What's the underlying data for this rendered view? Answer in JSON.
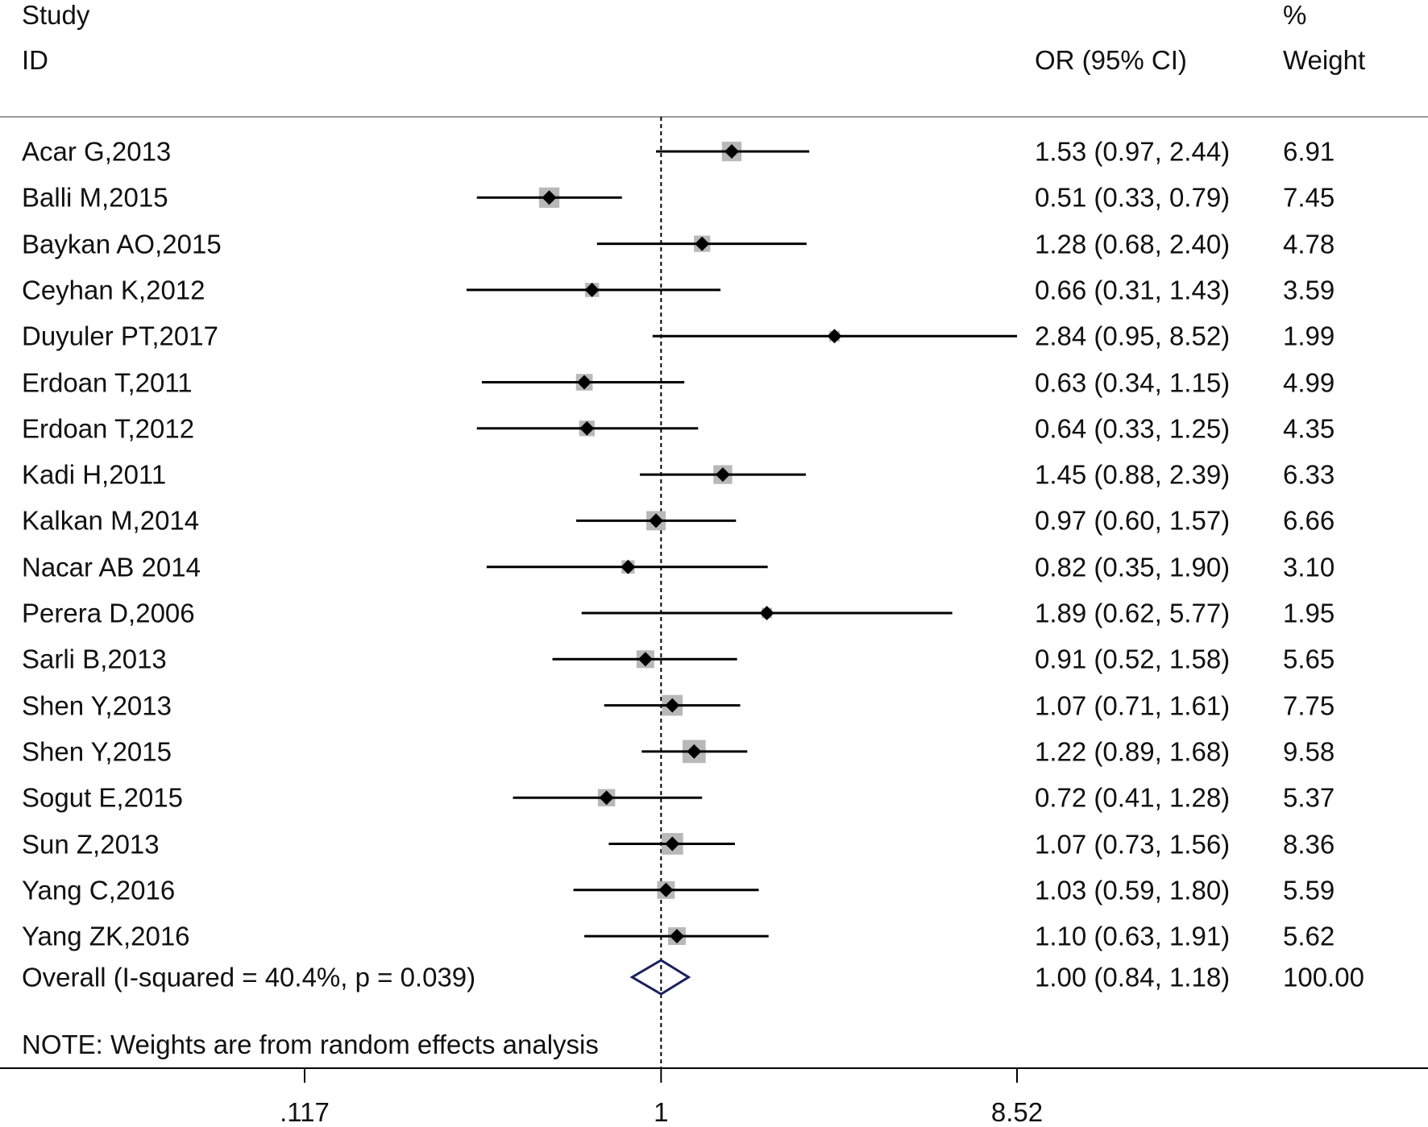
{
  "headers": {
    "study_line1": "Study",
    "study_line2": "ID",
    "or_label": "OR (95% CI)",
    "weight_line1": "%",
    "weight_line2": "Weight"
  },
  "note": "NOTE: Weights are from random effects analysis",
  "colors": {
    "text": "#111111",
    "line": "#000000",
    "box": "#b8b8b8",
    "point": "#000000",
    "diamond": "#1a1f5c",
    "rule": "#999999"
  },
  "chart_data": {
    "type": "forest",
    "title": "",
    "xscale": "log",
    "xlim": [
      0.117,
      8.52
    ],
    "null_line": 1,
    "ticks": [
      {
        "value": 0.117,
        "label": ".117"
      },
      {
        "value": 1,
        "label": "1"
      },
      {
        "value": 8.52,
        "label": "8.52"
      }
    ],
    "studies": [
      {
        "name": "Acar G,2013",
        "or": 1.53,
        "lo": 0.97,
        "hi": 2.44,
        "ci_text": "1.53 (0.97, 2.44)",
        "weight": "6.91"
      },
      {
        "name": "Balli M,2015",
        "or": 0.51,
        "lo": 0.33,
        "hi": 0.79,
        "ci_text": "0.51 (0.33, 0.79)",
        "weight": "7.45"
      },
      {
        "name": "Baykan AO,2015",
        "or": 1.28,
        "lo": 0.68,
        "hi": 2.4,
        "ci_text": "1.28 (0.68, 2.40)",
        "weight": "4.78"
      },
      {
        "name": "Ceyhan K,2012",
        "or": 0.66,
        "lo": 0.31,
        "hi": 1.43,
        "ci_text": "0.66 (0.31, 1.43)",
        "weight": "3.59"
      },
      {
        "name": "Duyuler PT,2017",
        "or": 2.84,
        "lo": 0.95,
        "hi": 8.52,
        "ci_text": "2.84 (0.95, 8.52)",
        "weight": "1.99"
      },
      {
        "name": "Erdoan T,2011",
        "or": 0.63,
        "lo": 0.34,
        "hi": 1.15,
        "ci_text": "0.63 (0.34, 1.15)",
        "weight": "4.99"
      },
      {
        "name": "Erdoan T,2012",
        "or": 0.64,
        "lo": 0.33,
        "hi": 1.25,
        "ci_text": "0.64 (0.33, 1.25)",
        "weight": "4.35"
      },
      {
        "name": "Kadi H,2011",
        "or": 1.45,
        "lo": 0.88,
        "hi": 2.39,
        "ci_text": "1.45 (0.88, 2.39)",
        "weight": "6.33"
      },
      {
        "name": "Kalkan M,2014",
        "or": 0.97,
        "lo": 0.6,
        "hi": 1.57,
        "ci_text": "0.97 (0.60, 1.57)",
        "weight": "6.66"
      },
      {
        "name": "Nacar AB 2014",
        "or": 0.82,
        "lo": 0.35,
        "hi": 1.9,
        "ci_text": "0.82 (0.35, 1.90)",
        "weight": "3.10"
      },
      {
        "name": "Perera D,2006",
        "or": 1.89,
        "lo": 0.62,
        "hi": 5.77,
        "ci_text": "1.89 (0.62, 5.77)",
        "weight": "1.95"
      },
      {
        "name": "Sarli B,2013",
        "or": 0.91,
        "lo": 0.52,
        "hi": 1.58,
        "ci_text": "0.91 (0.52, 1.58)",
        "weight": "5.65"
      },
      {
        "name": "Shen Y,2013",
        "or": 1.07,
        "lo": 0.71,
        "hi": 1.61,
        "ci_text": "1.07 (0.71, 1.61)",
        "weight": "7.75"
      },
      {
        "name": "Shen Y,2015",
        "or": 1.22,
        "lo": 0.89,
        "hi": 1.68,
        "ci_text": "1.22 (0.89, 1.68)",
        "weight": "9.58"
      },
      {
        "name": "Sogut E,2015",
        "or": 0.72,
        "lo": 0.41,
        "hi": 1.28,
        "ci_text": "0.72 (0.41, 1.28)",
        "weight": "5.37"
      },
      {
        "name": "Sun Z,2013",
        "or": 1.07,
        "lo": 0.73,
        "hi": 1.56,
        "ci_text": "1.07 (0.73, 1.56)",
        "weight": "8.36"
      },
      {
        "name": "Yang C,2016",
        "or": 1.03,
        "lo": 0.59,
        "hi": 1.8,
        "ci_text": "1.03 (0.59, 1.80)",
        "weight": "5.59"
      },
      {
        "name": "Yang ZK,2016",
        "or": 1.1,
        "lo": 0.63,
        "hi": 1.91,
        "ci_text": "1.10 (0.63, 1.91)",
        "weight": "5.62"
      }
    ],
    "overall": {
      "label": "Overall  (I-squared = 40.4%, p = 0.039)",
      "or": 1.0,
      "lo": 0.84,
      "hi": 1.18,
      "ci_text": "1.00 (0.84, 1.18)",
      "weight": "100.00"
    }
  }
}
